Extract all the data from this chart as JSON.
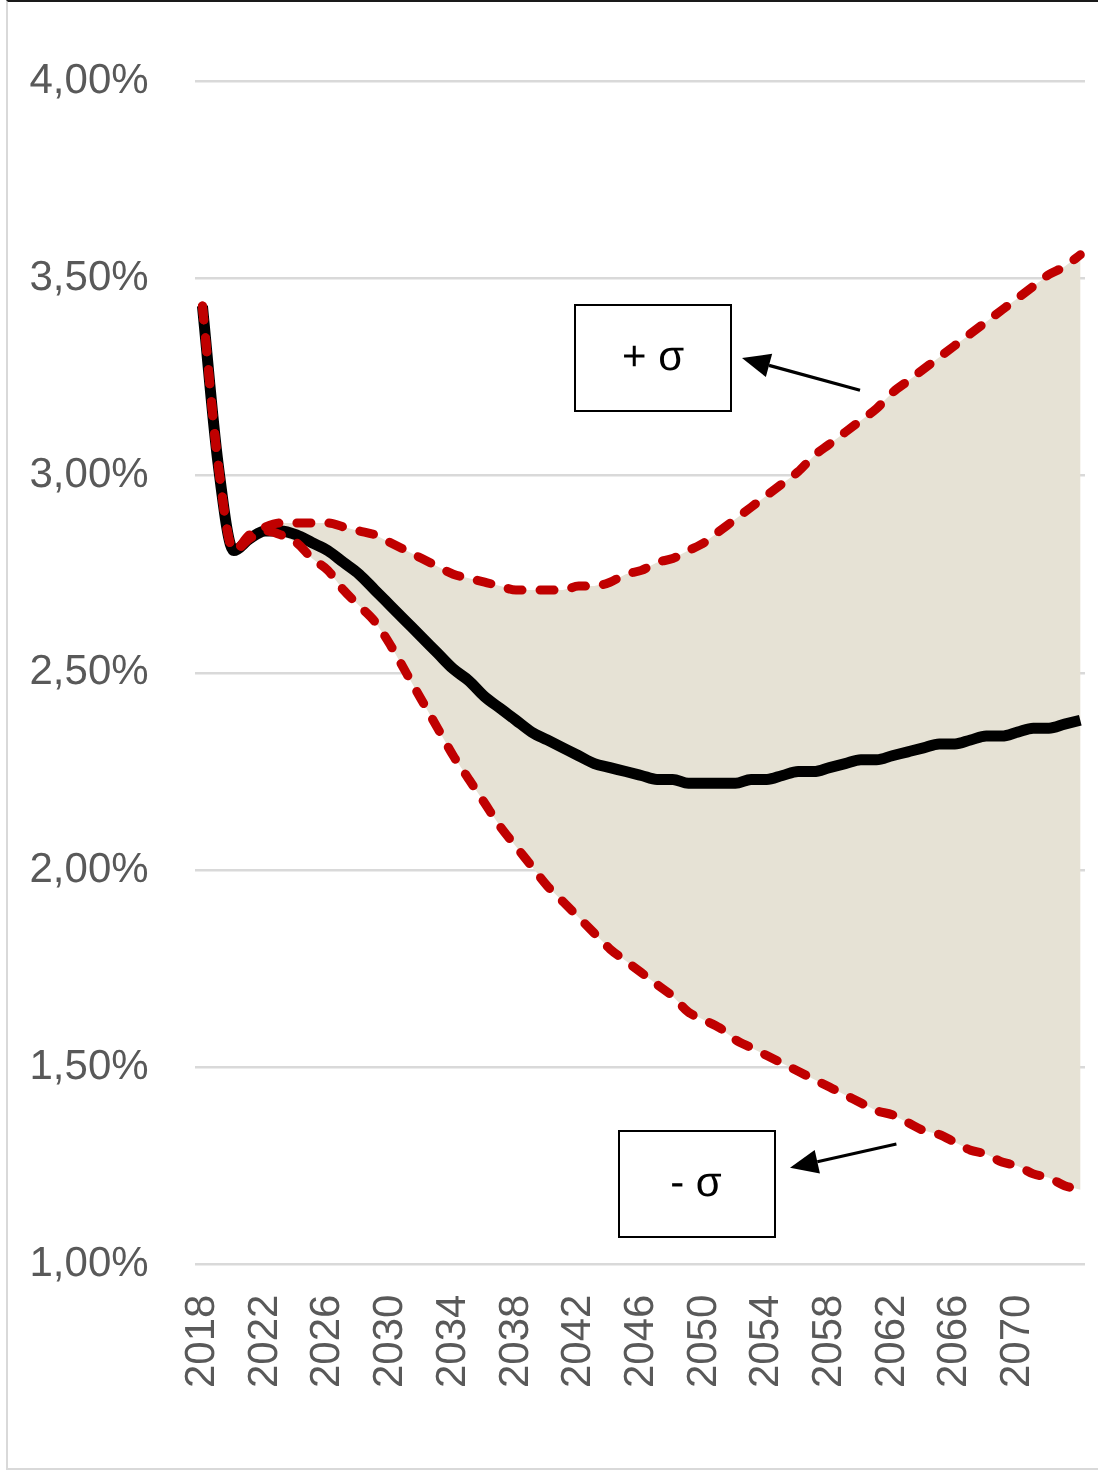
{
  "chart_data": {
    "type": "line",
    "x": [
      2018,
      2019,
      2020,
      2021,
      2022,
      2023,
      2024,
      2025,
      2026,
      2027,
      2028,
      2029,
      2030,
      2031,
      2032,
      2033,
      2034,
      2035,
      2036,
      2037,
      2038,
      2039,
      2040,
      2041,
      2042,
      2043,
      2044,
      2045,
      2046,
      2047,
      2048,
      2049,
      2050,
      2051,
      2052,
      2053,
      2054,
      2055,
      2056,
      2057,
      2058,
      2059,
      2060,
      2061,
      2062,
      2063,
      2064,
      2065,
      2066,
      2067,
      2068,
      2069,
      2070,
      2071,
      2072,
      2073,
      2074
    ],
    "series": [
      {
        "color": "#000000",
        "values": [
          3.43,
          3.03,
          2.81,
          2.84,
          2.86,
          2.86,
          2.85,
          2.83,
          2.81,
          2.78,
          2.75,
          2.71,
          2.67,
          2.63,
          2.59,
          2.55,
          2.51,
          2.48,
          2.44,
          2.41,
          2.38,
          2.35,
          2.33,
          2.31,
          2.29,
          2.27,
          2.26,
          2.25,
          2.24,
          2.23,
          2.23,
          2.22,
          2.22,
          2.22,
          2.22,
          2.23,
          2.23,
          2.24,
          2.25,
          2.25,
          2.26,
          2.27,
          2.28,
          2.28,
          2.29,
          2.3,
          2.31,
          2.32,
          2.32,
          2.33,
          2.34,
          2.34,
          2.35,
          2.36,
          2.36,
          2.37,
          2.38
        ],
        "lower": [
          3.43,
          3.03,
          2.81,
          2.84,
          2.86,
          2.85,
          2.83,
          2.79,
          2.76,
          2.71,
          2.67,
          2.63,
          2.57,
          2.5,
          2.43,
          2.36,
          2.29,
          2.23,
          2.17,
          2.11,
          2.06,
          2.01,
          1.96,
          1.92,
          1.88,
          1.84,
          1.8,
          1.77,
          1.74,
          1.71,
          1.68,
          1.64,
          1.62,
          1.6,
          1.57,
          1.55,
          1.53,
          1.51,
          1.49,
          1.47,
          1.45,
          1.43,
          1.41,
          1.39,
          1.38,
          1.36,
          1.34,
          1.33,
          1.31,
          1.29,
          1.28,
          1.26,
          1.25,
          1.23,
          1.22,
          1.2,
          1.19
        ],
        "upper": [
          3.43,
          3.03,
          2.81,
          2.85,
          2.87,
          2.88,
          2.88,
          2.88,
          2.88,
          2.87,
          2.86,
          2.85,
          2.83,
          2.81,
          2.79,
          2.77,
          2.75,
          2.74,
          2.73,
          2.72,
          2.71,
          2.71,
          2.71,
          2.71,
          2.72,
          2.72,
          2.73,
          2.75,
          2.76,
          2.78,
          2.79,
          2.81,
          2.83,
          2.86,
          2.89,
          2.92,
          2.95,
          2.98,
          3.01,
          3.05,
          3.08,
          3.11,
          3.14,
          3.17,
          3.21,
          3.24,
          3.27,
          3.3,
          3.33,
          3.36,
          3.39,
          3.42,
          3.45,
          3.48,
          3.51,
          3.53,
          3.56
        ]
      },
      {
        "color": "#c00000",
        "line_style": "dashed",
        "values": [
          3.43,
          3.03,
          2.81,
          2.85,
          2.87,
          2.88,
          2.88,
          2.88,
          2.88,
          2.87,
          2.86,
          2.85,
          2.83,
          2.81,
          2.79,
          2.77,
          2.75,
          2.74,
          2.73,
          2.72,
          2.71,
          2.71,
          2.71,
          2.71,
          2.72,
          2.72,
          2.73,
          2.75,
          2.76,
          2.78,
          2.79,
          2.81,
          2.83,
          2.86,
          2.89,
          2.92,
          2.95,
          2.98,
          3.01,
          3.05,
          3.08,
          3.11,
          3.14,
          3.17,
          3.21,
          3.24,
          3.27,
          3.3,
          3.33,
          3.36,
          3.39,
          3.42,
          3.45,
          3.48,
          3.51,
          3.53,
          3.56
        ]
      },
      {
        "color": "#c00000",
        "line_style": "dashed",
        "values": [
          3.43,
          3.03,
          2.81,
          2.84,
          2.86,
          2.85,
          2.83,
          2.79,
          2.76,
          2.71,
          2.67,
          2.63,
          2.57,
          2.5,
          2.43,
          2.36,
          2.29,
          2.23,
          2.17,
          2.11,
          2.06,
          2.01,
          1.96,
          1.92,
          1.88,
          1.84,
          1.8,
          1.77,
          1.74,
          1.71,
          1.68,
          1.64,
          1.62,
          1.6,
          1.57,
          1.55,
          1.53,
          1.51,
          1.49,
          1.47,
          1.45,
          1.43,
          1.41,
          1.39,
          1.38,
          1.36,
          1.34,
          1.33,
          1.31,
          1.29,
          1.28,
          1.26,
          1.25,
          1.23,
          1.22,
          1.2,
          1.19
        ]
      }
    ],
    "xlim": [
      2017.5,
      2074.3
    ],
    "xticks": [
      2018,
      2022,
      2026,
      2030,
      2034,
      2038,
      2042,
      2046,
      2050,
      2054,
      2058,
      2062,
      2066,
      2070
    ],
    "ylim": [
      1,
      4
    ],
    "yticks": [
      {
        "value": 1,
        "label": "1,00%"
      },
      {
        "value": 1.5,
        "label": "1,50%"
      },
      {
        "value": 2,
        "label": "2,00%"
      },
      {
        "value": 2.5,
        "label": "2,50%"
      },
      {
        "value": 3,
        "label": "3,00%"
      },
      {
        "value": 3.5,
        "label": "3,50%"
      },
      {
        "value": 4,
        "label": "4,00%"
      }
    ],
    "grid": "y",
    "line_style": "solid",
    "marker": "none",
    "annotations": [
      "+ σ",
      "- σ"
    ]
  }
}
